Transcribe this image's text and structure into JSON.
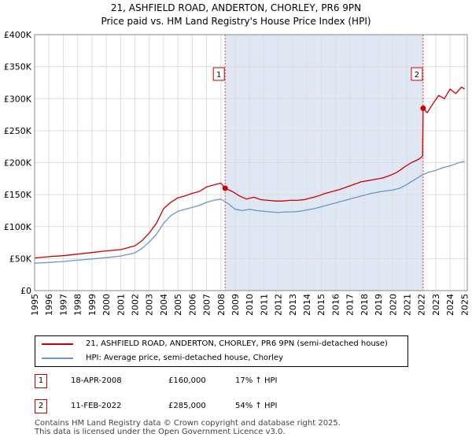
{
  "title_line1": "21, ASHFIELD ROAD, ANDERTON, CHORLEY, PR6 9PN",
  "title_line2": "Price paid vs. HM Land Registry's House Price Index (HPI)",
  "colors": {
    "property_line": "#cc0000",
    "hpi_line": "#6b96c8",
    "shade": "#dfe7f5",
    "grid": "#dddddd",
    "marker_border": "#cc0000"
  },
  "chart_data": {
    "type": "line",
    "title": "21, ASHFIELD ROAD, ANDERTON, CHORLEY, PR6 9PN — Price paid vs. HM Land Registry's House Price Index (HPI)",
    "xlabel": "",
    "ylabel": "",
    "xlim": [
      1995.0,
      2025.2
    ],
    "ylim": [
      0,
      400000
    ],
    "grid": true,
    "x_ticks": [
      "1995",
      "1996",
      "1997",
      "1998",
      "1999",
      "2000",
      "2001",
      "2002",
      "2003",
      "2004",
      "2005",
      "2006",
      "2007",
      "2008",
      "2009",
      "2010",
      "2011",
      "2012",
      "2013",
      "2014",
      "2015",
      "2016",
      "2017",
      "2018",
      "2019",
      "2020",
      "2021",
      "2022",
      "2023",
      "2024",
      "2025"
    ],
    "y_ticks": [
      {
        "value": 0,
        "label": "£0"
      },
      {
        "value": 50000,
        "label": "£50K"
      },
      {
        "value": 100000,
        "label": "£100K"
      },
      {
        "value": 150000,
        "label": "£150K"
      },
      {
        "value": 200000,
        "label": "£200K"
      },
      {
        "value": 250000,
        "label": "£250K"
      },
      {
        "value": 300000,
        "label": "£300K"
      },
      {
        "value": 350000,
        "label": "£350K"
      },
      {
        "value": 400000,
        "label": "£400K"
      }
    ],
    "shaded_range": [
      2008.3,
      2022.12
    ],
    "series": [
      {
        "name": "21, ASHFIELD ROAD, ANDERTON, CHORLEY, PR6 9PN (semi-detached house)",
        "color": "#cc0000",
        "x": [
          1995.0,
          1996.0,
          1997.0,
          1998.0,
          1999.0,
          2000.0,
          2001.0,
          2002.0,
          2002.5,
          2003.0,
          2003.5,
          2004.0,
          2004.5,
          2005.0,
          2005.5,
          2006.0,
          2006.5,
          2007.0,
          2007.5,
          2008.0,
          2008.3,
          2008.8,
          2009.3,
          2009.8,
          2010.3,
          2010.8,
          2011.3,
          2011.8,
          2012.3,
          2012.8,
          2013.3,
          2013.8,
          2014.3,
          2014.8,
          2015.3,
          2015.8,
          2016.3,
          2016.8,
          2017.3,
          2017.8,
          2018.3,
          2018.8,
          2019.3,
          2019.8,
          2020.3,
          2020.8,
          2021.3,
          2021.8,
          2022.08,
          2022.12,
          2022.4,
          2022.8,
          2023.2,
          2023.6,
          2024.0,
          2024.4,
          2024.8,
          2025.0
        ],
        "y": [
          51000,
          53000,
          54500,
          57000,
          59500,
          62000,
          64000,
          70000,
          78000,
          90000,
          105000,
          128000,
          138000,
          145000,
          148000,
          152000,
          155000,
          162000,
          165000,
          168000,
          160000,
          155000,
          148000,
          143000,
          146000,
          142000,
          141000,
          140000,
          140000,
          141000,
          141000,
          142000,
          145000,
          148000,
          152000,
          155000,
          158000,
          162000,
          166000,
          170000,
          172000,
          174000,
          176000,
          180000,
          185000,
          193000,
          200000,
          205000,
          210000,
          285000,
          278000,
          292000,
          305000,
          300000,
          315000,
          308000,
          318000,
          315000
        ]
      },
      {
        "name": "HPI: Average price, semi-detached house, Chorley",
        "color": "#6b96c8",
        "x": [
          1995.0,
          1996.0,
          1997.0,
          1998.0,
          1999.0,
          2000.0,
          2001.0,
          2002.0,
          2002.5,
          2003.0,
          2003.5,
          2004.0,
          2004.5,
          2005.0,
          2005.5,
          2006.0,
          2006.5,
          2007.0,
          2007.5,
          2008.0,
          2008.5,
          2009.0,
          2009.5,
          2010.0,
          2010.5,
          2011.0,
          2011.5,
          2012.0,
          2012.5,
          2013.0,
          2013.5,
          2014.0,
          2014.5,
          2015.0,
          2015.5,
          2016.0,
          2016.5,
          2017.0,
          2017.5,
          2018.0,
          2018.5,
          2019.0,
          2019.5,
          2020.0,
          2020.5,
          2021.0,
          2021.5,
          2022.0,
          2022.5,
          2023.0,
          2023.5,
          2024.0,
          2024.5,
          2025.0
        ],
        "y": [
          43000,
          44000,
          45500,
          47500,
          49500,
          51500,
          54000,
          59000,
          66000,
          76000,
          88000,
          105000,
          117000,
          124000,
          127000,
          130000,
          133000,
          138000,
          141000,
          143000,
          136000,
          127000,
          125000,
          127000,
          125000,
          124000,
          123000,
          122000,
          123000,
          123000,
          124000,
          126000,
          128000,
          131000,
          134000,
          137000,
          140000,
          143000,
          146000,
          149000,
          152000,
          154000,
          156000,
          157000,
          160000,
          166000,
          173000,
          180000,
          185000,
          188000,
          192000,
          195000,
          199000,
          202000
        ]
      }
    ],
    "sales": [
      {
        "label": "1",
        "x": 2008.3,
        "price": 160000
      },
      {
        "label": "2",
        "x": 2022.12,
        "price": 285000
      }
    ]
  },
  "legend": {
    "property": "21, ASHFIELD ROAD, ANDERTON, CHORLEY, PR6 9PN (semi-detached house)",
    "hpi": "HPI: Average price, semi-detached house, Chorley"
  },
  "transactions": [
    {
      "num": "1",
      "date": "18-APR-2008",
      "price": "£160,000",
      "hpi": "17% ↑ HPI"
    },
    {
      "num": "2",
      "date": "11-FEB-2022",
      "price": "£285,000",
      "hpi": "54% ↑ HPI"
    }
  ],
  "footer_line1": "Contains HM Land Registry data © Crown copyright and database right 2025.",
  "footer_line2": "This data is licensed under the Open Government Licence v3.0."
}
